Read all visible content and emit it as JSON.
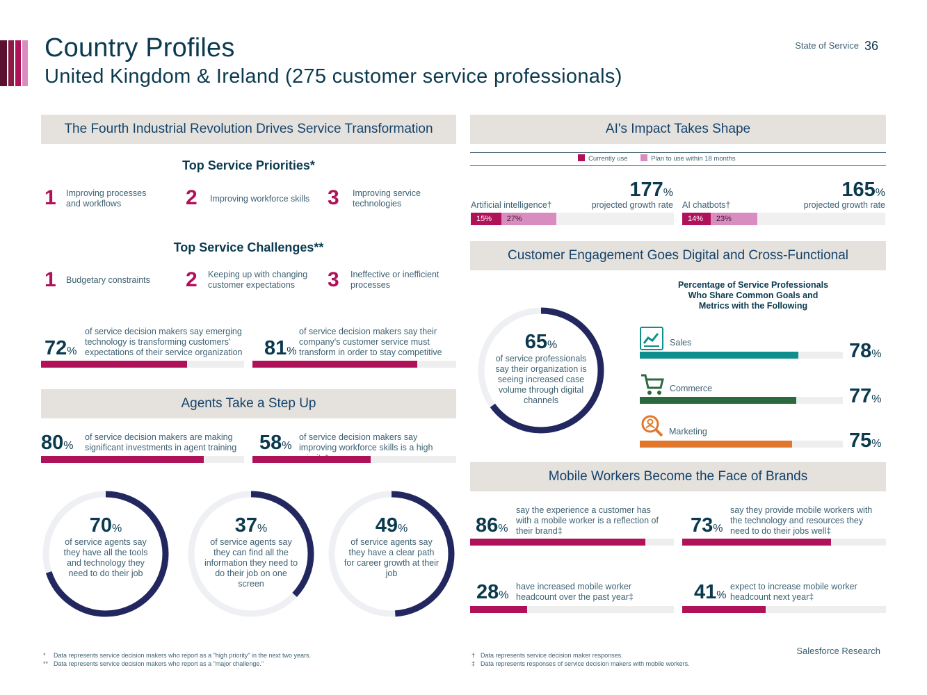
{
  "header": {
    "title": "Country Profiles",
    "subtitle": "United Kingdom & Ireland (275 customer service professionals)",
    "section": "State of Service",
    "page": "36"
  },
  "colors": {
    "primary": "#b0125a",
    "navy": "#22285f",
    "teal": "#0e8f8c",
    "green": "#2b6a3f",
    "orange": "#e0772b",
    "light_pink": "#d98cc0"
  },
  "left": {
    "section1": "The Fourth Industrial Revolution Drives Service Transformation",
    "priorities_title": "Top Service Priorities*",
    "priorities": [
      {
        "rank": "1",
        "text": "Improving processes and workflows"
      },
      {
        "rank": "2",
        "text": "Improving workforce skills"
      },
      {
        "rank": "3",
        "text": "Improving service technologies"
      }
    ],
    "challenges_title": "Top Service Challenges**",
    "challenges": [
      {
        "rank": "1",
        "text": "Budgetary constraints"
      },
      {
        "rank": "2",
        "text": "Keeping up with changing customer expectations"
      },
      {
        "rank": "3",
        "text": "Ineffective or inefficient processes"
      }
    ],
    "stats1": [
      {
        "value": "72",
        "unit": "%",
        "pct": 72,
        "text": "of service decision makers say emerging technology is transforming customers' expectations of their service organization"
      },
      {
        "value": "81",
        "unit": "%",
        "pct": 81,
        "text": "of service decision makers say their company's customer service must transform in order to stay competitive"
      }
    ],
    "section2": "Agents Take a Step Up",
    "stats2": [
      {
        "value": "80",
        "unit": "%",
        "pct": 80,
        "text": "of service decision makers are making significant investments in agent training"
      },
      {
        "value": "58",
        "unit": "%",
        "pct": 58,
        "text": "of service decision makers say improving workforce skills is a high priority*"
      }
    ],
    "rings": [
      {
        "value": "70",
        "unit": "%",
        "pct": 70,
        "text": "of service agents say they have all the tools and technology they need to do their job"
      },
      {
        "value": "37",
        "unit": "%",
        "pct": 37,
        "text": "of service agents say they can find all the information they need to do their job on one screen"
      },
      {
        "value": "49",
        "unit": "%",
        "pct": 49,
        "text": "of service agents say they have a clear path for career growth at their job"
      }
    ],
    "footnotes": [
      {
        "mark": "*",
        "text": "Data represents service decision makers who report as a \"high priority\" in the next two years."
      },
      {
        "mark": "**",
        "text": "Data represents service decision makers who report as a \"major challenge.\""
      }
    ]
  },
  "right": {
    "section1": "AI's Impact Takes Shape",
    "legend": [
      "Currently use",
      "Plan to use within 18 months"
    ],
    "ai": [
      {
        "label": "Artificial intelligence†",
        "growth": "177",
        "unit": "%",
        "growth_label": "projected growth rate",
        "current": 15,
        "plan": 27,
        "current_label": "15%",
        "plan_label": "27%"
      },
      {
        "label": "AI chatbots†",
        "growth": "165",
        "unit": "%",
        "growth_label": "projected growth rate",
        "current": 14,
        "plan": 23,
        "current_label": "14%",
        "plan_label": "23%"
      }
    ],
    "section2": "Customer Engagement Goes Digital and Cross-Functional",
    "ring": {
      "value": "65",
      "unit": "%",
      "pct": 65,
      "text": "of service professionals say their organization is seeing increased case volume through digital channels"
    },
    "goals_title": "Percentage of Service Professionals Who Share Common Goals and Metrics with the Following",
    "goals": [
      {
        "label": "Sales",
        "value": "78",
        "unit": "%",
        "pct": 78,
        "icon": "sales-chart-icon"
      },
      {
        "label": "Commerce",
        "value": "77",
        "unit": "%",
        "pct": 77,
        "icon": "shopping-cart-icon"
      },
      {
        "label": "Marketing",
        "value": "75",
        "unit": "%",
        "pct": 75,
        "icon": "magnifier-person-icon"
      }
    ],
    "section3": "Mobile Workers Become the Face of Brands",
    "mobile": [
      {
        "value": "86",
        "unit": "%",
        "pct": 86,
        "text": "say the experience a customer has with a mobile worker is a reflection of their brand‡"
      },
      {
        "value": "73",
        "unit": "%",
        "pct": 73,
        "text": "say they provide mobile workers with the technology and resources they need to do their jobs well‡"
      },
      {
        "value": "28",
        "unit": "%",
        "pct": 28,
        "text": "have increased mobile worker headcount over the past year‡"
      },
      {
        "value": "41",
        "unit": "%",
        "pct": 41,
        "text": "expect to increase mobile worker headcount next year‡"
      }
    ],
    "footnotes": [
      {
        "mark": "†",
        "text": "Data represents service decision maker responses."
      },
      {
        "mark": "‡",
        "text": "Data represents responses of service decision makers with mobile workers."
      }
    ],
    "brand": "Salesforce Research"
  }
}
